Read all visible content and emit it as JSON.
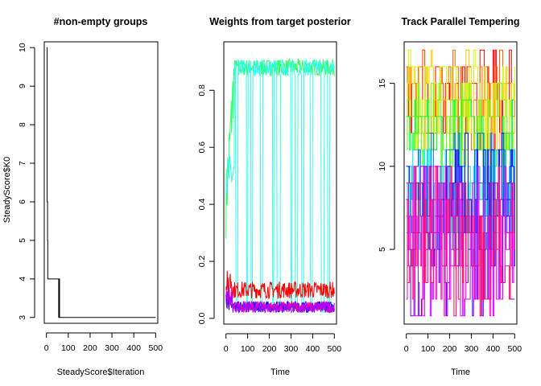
{
  "chart_data": [
    {
      "type": "line",
      "title": "#non-empty groups",
      "xlabel": "SteadyScore$Iteration",
      "ylabel": "SteadyScore$K0",
      "xlim": [
        0,
        500
      ],
      "ylim": [
        3,
        10
      ],
      "xticks": [
        "0",
        "100",
        "200",
        "300",
        "400",
        "500"
      ],
      "yticks": [
        "3",
        "4",
        "5",
        "6",
        "7",
        "8",
        "9",
        "10"
      ],
      "series": [
        {
          "color": "#000000",
          "x": [
            1,
            2,
            3,
            4,
            5,
            6,
            8,
            10,
            12,
            55,
            56,
            57,
            58,
            59,
            60,
            62,
            64,
            66,
            500
          ],
          "y": [
            10,
            10,
            6,
            6,
            5,
            4,
            4,
            4,
            4,
            4,
            3,
            4,
            3,
            4,
            3,
            3,
            3,
            3,
            3
          ]
        }
      ]
    },
    {
      "type": "line",
      "title": "Weights from target posterior",
      "xlabel": "Time",
      "ylabel": "",
      "xlim": [
        0,
        500
      ],
      "ylim": [
        0,
        0.95
      ],
      "xticks": [
        "0",
        "100",
        "200",
        "300",
        "400",
        "500"
      ],
      "yticks": [
        "0.0",
        "0.2",
        "0.4",
        "0.6",
        "0.8"
      ],
      "series": [
        {
          "color": "#33ff66",
          "level": 0.88,
          "start_level": 0.4,
          "noise": 0.03,
          "style": "high"
        },
        {
          "color": "#33ffee",
          "level": 0.88,
          "start_level": 0.5,
          "noise": 0.03,
          "style": "switch"
        },
        {
          "color": "#0000ff",
          "level": 0.04,
          "noise": 0.02,
          "style": "low"
        },
        {
          "color": "#ff0000",
          "level": 0.1,
          "noise": 0.03,
          "style": "low"
        },
        {
          "color": "#ff0099",
          "level": 0.04,
          "noise": 0.02,
          "style": "low"
        },
        {
          "color": "#aa00ff",
          "level": 0.04,
          "noise": 0.02,
          "style": "low"
        }
      ]
    },
    {
      "type": "line",
      "title": "Track Parallel Tempering",
      "xlabel": "Time",
      "ylabel": "",
      "xlim": [
        0,
        500
      ],
      "ylim": [
        1,
        17
      ],
      "xticks": [
        "0",
        "100",
        "200",
        "300",
        "400",
        "500"
      ],
      "yticks": [
        "5",
        "10",
        "15"
      ],
      "series": [
        {
          "color": "#ff0000",
          "band": [
            11,
            17
          ]
        },
        {
          "color": "#ff6600",
          "band": [
            11,
            17
          ]
        },
        {
          "color": "#ffcc00",
          "band": [
            11,
            17
          ]
        },
        {
          "color": "#ccff00",
          "band": [
            11,
            17
          ]
        },
        {
          "color": "#66ff00",
          "band": [
            10,
            15
          ]
        },
        {
          "color": "#00ff33",
          "band": [
            9,
            14
          ]
        },
        {
          "color": "#00ffcc",
          "band": [
            6,
            11
          ]
        },
        {
          "color": "#00ccff",
          "band": [
            5,
            11
          ]
        },
        {
          "color": "#0066ff",
          "band": [
            5,
            12
          ]
        },
        {
          "color": "#0000ff",
          "band": [
            4,
            12
          ]
        },
        {
          "color": "#6600ff",
          "band": [
            1,
            10
          ]
        },
        {
          "color": "#cc00ff",
          "band": [
            1,
            10
          ]
        },
        {
          "color": "#ff00cc",
          "band": [
            1,
            10
          ]
        },
        {
          "color": "#ff0066",
          "band": [
            1,
            10
          ]
        }
      ]
    }
  ]
}
